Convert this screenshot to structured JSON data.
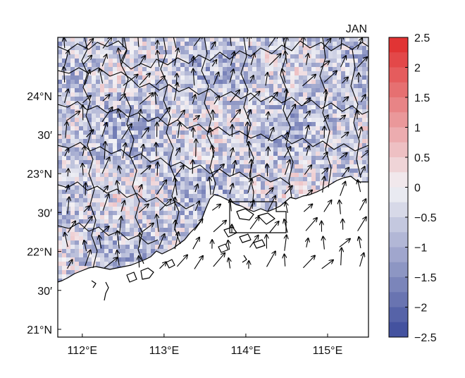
{
  "map": {
    "month_label": "JAN",
    "lat_ticks": [
      {
        "lat": 24.0,
        "label": "24°N"
      },
      {
        "lat": 23.5,
        "label": "30′"
      },
      {
        "lat": 23.0,
        "label": "23°N"
      },
      {
        "lat": 22.5,
        "label": "30′"
      },
      {
        "lat": 22.0,
        "label": "22°N"
      },
      {
        "lat": 21.5,
        "label": "30′"
      },
      {
        "lat": 21.0,
        "label": "21°N"
      }
    ],
    "lon_ticks": [
      {
        "lon": 112,
        "label": "112°E"
      },
      {
        "lon": 113,
        "label": "113°E"
      },
      {
        "lon": 114,
        "label": "114°E"
      },
      {
        "lon": 115,
        "label": "115°E"
      }
    ],
    "lon_range": [
      111.7,
      115.5
    ],
    "lat_range": [
      20.9,
      24.75
    ],
    "colorbar": {
      "min": -2.5,
      "max": 2.5,
      "ticks": [
        {
          "value": 2.5,
          "label": "2.5"
        },
        {
          "value": 2,
          "label": "2"
        },
        {
          "value": 1.5,
          "label": "1.5"
        },
        {
          "value": 1,
          "label": "1"
        },
        {
          "value": 0.5,
          "label": "0.5"
        },
        {
          "value": 0,
          "label": "0"
        },
        {
          "value": -0.5,
          "label": "−0.5"
        },
        {
          "value": -1,
          "label": "−1"
        },
        {
          "value": -1.5,
          "label": "−1.5"
        },
        {
          "value": -2,
          "label": "−2"
        },
        {
          "value": -2.5,
          "label": "−2.5"
        }
      ],
      "low_color": "#3b4a9a",
      "mid_color": "#f2f2f6",
      "high_color": "#e02a2a"
    },
    "colors": {
      "ocean": "#ffffff",
      "coastline": "#000000",
      "boundary": "#000000",
      "arrow": "#000000"
    },
    "inset_box": {
      "lon_min": 113.8,
      "lon_max": 114.5,
      "lat_min": 22.13,
      "lat_max": 22.58
    }
  }
}
